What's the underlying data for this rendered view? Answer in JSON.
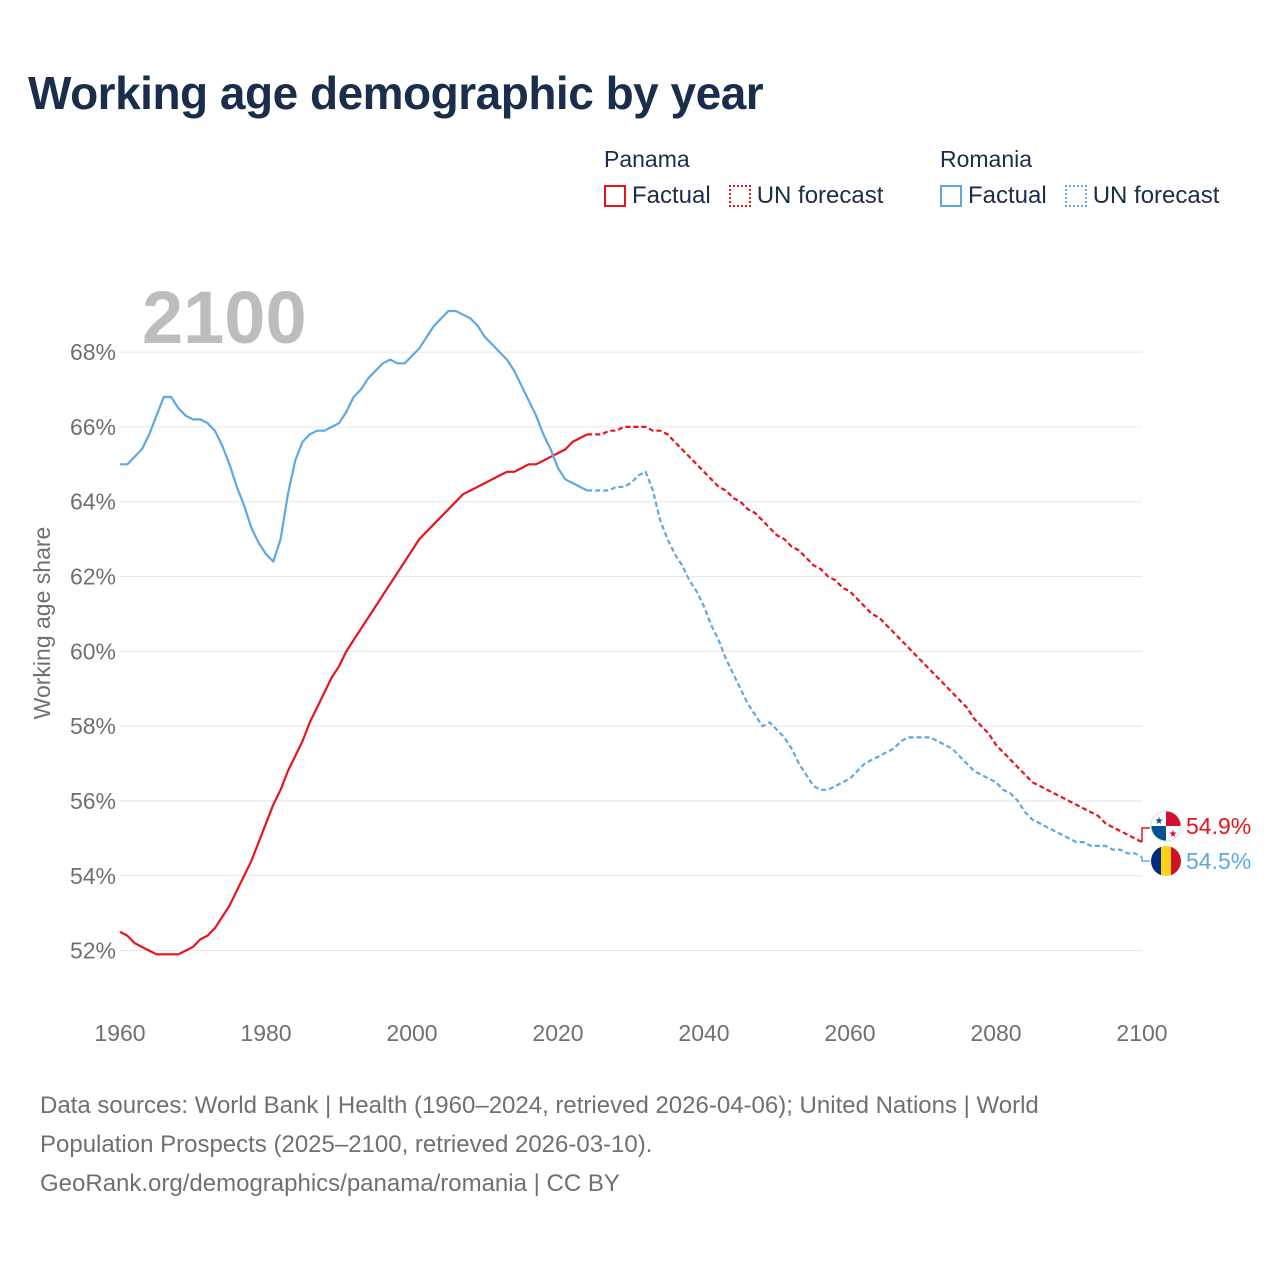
{
  "title": "Working age demographic by year",
  "legend": {
    "groups": [
      {
        "country": "Panama",
        "factual_label": "Factual",
        "forecast_label": "UN forecast",
        "color": "#e8141c"
      },
      {
        "country": "Romania",
        "factual_label": "Factual",
        "forecast_label": "UN forecast",
        "color": "#5fa8e3"
      }
    ]
  },
  "year_watermark": "2100",
  "sources": {
    "line1": "Data sources: World Bank | Health (1960–2024, retrieved 2026-04-06); United Nations | World",
    "line2": "Population Prospects (2025–2100, retrieved 2026-03-10).",
    "line3": "GeoRank.org/demographics/panama/romania | CC BY"
  },
  "colors": {
    "panama": "#e8141c",
    "romania": "#5fa8e3",
    "title": "#1a2e4c",
    "axis_text": "#707070",
    "grid": "#e6e6e6",
    "watermark": "#bdbdbd"
  },
  "chart_data": {
    "type": "line",
    "title": "Working age demographic by year",
    "xlabel": "",
    "ylabel": "Working age share",
    "xlim": [
      1960,
      2100
    ],
    "ylim": [
      51,
      69.5
    ],
    "x_ticks": [
      1960,
      1980,
      2000,
      2020,
      2040,
      2060,
      2080,
      2100
    ],
    "x_tick_labels": [
      "1960",
      "1980",
      "2000",
      "2020",
      "2040",
      "2060",
      "2080",
      "2100"
    ],
    "y_ticks": [
      52,
      54,
      56,
      58,
      60,
      62,
      64,
      66,
      68
    ],
    "y_tick_labels": [
      "52%",
      "54%",
      "56%",
      "58%",
      "60%",
      "62%",
      "64%",
      "66%",
      "68%"
    ],
    "factual_end_year": 2024,
    "series": [
      {
        "name": "Panama",
        "end_label": "54.9%",
        "points": [
          [
            1960,
            52.5
          ],
          [
            1961,
            52.4
          ],
          [
            1962,
            52.2
          ],
          [
            1963,
            52.1
          ],
          [
            1964,
            52.0
          ],
          [
            1965,
            51.9
          ],
          [
            1966,
            51.9
          ],
          [
            1967,
            51.9
          ],
          [
            1968,
            51.9
          ],
          [
            1969,
            52.0
          ],
          [
            1970,
            52.1
          ],
          [
            1971,
            52.3
          ],
          [
            1972,
            52.4
          ],
          [
            1973,
            52.6
          ],
          [
            1974,
            52.9
          ],
          [
            1975,
            53.2
          ],
          [
            1976,
            53.6
          ],
          [
            1977,
            54.0
          ],
          [
            1978,
            54.4
          ],
          [
            1979,
            54.9
          ],
          [
            1980,
            55.4
          ],
          [
            1981,
            55.9
          ],
          [
            1982,
            56.3
          ],
          [
            1983,
            56.8
          ],
          [
            1984,
            57.2
          ],
          [
            1985,
            57.6
          ],
          [
            1986,
            58.1
          ],
          [
            1987,
            58.5
          ],
          [
            1988,
            58.9
          ],
          [
            1989,
            59.3
          ],
          [
            1990,
            59.6
          ],
          [
            1991,
            60.0
          ],
          [
            1992,
            60.3
          ],
          [
            1993,
            60.6
          ],
          [
            1994,
            60.9
          ],
          [
            1995,
            61.2
          ],
          [
            1996,
            61.5
          ],
          [
            1997,
            61.8
          ],
          [
            1998,
            62.1
          ],
          [
            1999,
            62.4
          ],
          [
            2000,
            62.7
          ],
          [
            2001,
            63.0
          ],
          [
            2002,
            63.2
          ],
          [
            2003,
            63.4
          ],
          [
            2004,
            63.6
          ],
          [
            2005,
            63.8
          ],
          [
            2006,
            64.0
          ],
          [
            2007,
            64.2
          ],
          [
            2008,
            64.3
          ],
          [
            2009,
            64.4
          ],
          [
            2010,
            64.5
          ],
          [
            2011,
            64.6
          ],
          [
            2012,
            64.7
          ],
          [
            2013,
            64.8
          ],
          [
            2014,
            64.8
          ],
          [
            2015,
            64.9
          ],
          [
            2016,
            65.0
          ],
          [
            2017,
            65.0
          ],
          [
            2018,
            65.1
          ],
          [
            2019,
            65.2
          ],
          [
            2020,
            65.3
          ],
          [
            2021,
            65.4
          ],
          [
            2022,
            65.6
          ],
          [
            2023,
            65.7
          ],
          [
            2024,
            65.8
          ],
          [
            2025,
            65.8
          ],
          [
            2026,
            65.8
          ],
          [
            2027,
            65.9
          ],
          [
            2028,
            65.9
          ],
          [
            2029,
            66.0
          ],
          [
            2030,
            66.0
          ],
          [
            2031,
            66.0
          ],
          [
            2032,
            66.0
          ],
          [
            2033,
            65.9
          ],
          [
            2034,
            65.9
          ],
          [
            2035,
            65.8
          ],
          [
            2036,
            65.6
          ],
          [
            2037,
            65.4
          ],
          [
            2038,
            65.2
          ],
          [
            2039,
            65.0
          ],
          [
            2040,
            64.8
          ],
          [
            2041,
            64.6
          ],
          [
            2042,
            64.4
          ],
          [
            2043,
            64.3
          ],
          [
            2044,
            64.1
          ],
          [
            2045,
            64.0
          ],
          [
            2046,
            63.8
          ],
          [
            2047,
            63.7
          ],
          [
            2048,
            63.5
          ],
          [
            2049,
            63.3
          ],
          [
            2050,
            63.1
          ],
          [
            2051,
            63.0
          ],
          [
            2052,
            62.8
          ],
          [
            2053,
            62.7
          ],
          [
            2054,
            62.5
          ],
          [
            2055,
            62.3
          ],
          [
            2056,
            62.2
          ],
          [
            2057,
            62.0
          ],
          [
            2058,
            61.9
          ],
          [
            2059,
            61.7
          ],
          [
            2060,
            61.6
          ],
          [
            2061,
            61.4
          ],
          [
            2062,
            61.2
          ],
          [
            2063,
            61.0
          ],
          [
            2064,
            60.9
          ],
          [
            2065,
            60.7
          ],
          [
            2066,
            60.5
          ],
          [
            2067,
            60.3
          ],
          [
            2068,
            60.1
          ],
          [
            2069,
            59.9
          ],
          [
            2070,
            59.7
          ],
          [
            2071,
            59.5
          ],
          [
            2072,
            59.3
          ],
          [
            2073,
            59.1
          ],
          [
            2074,
            58.9
          ],
          [
            2075,
            58.7
          ],
          [
            2076,
            58.5
          ],
          [
            2077,
            58.2
          ],
          [
            2078,
            58.0
          ],
          [
            2079,
            57.8
          ],
          [
            2080,
            57.5
          ],
          [
            2081,
            57.3
          ],
          [
            2082,
            57.1
          ],
          [
            2083,
            56.9
          ],
          [
            2084,
            56.7
          ],
          [
            2085,
            56.5
          ],
          [
            2086,
            56.4
          ],
          [
            2087,
            56.3
          ],
          [
            2088,
            56.2
          ],
          [
            2089,
            56.1
          ],
          [
            2090,
            56.0
          ],
          [
            2091,
            55.9
          ],
          [
            2092,
            55.8
          ],
          [
            2093,
            55.7
          ],
          [
            2094,
            55.6
          ],
          [
            2095,
            55.4
          ],
          [
            2096,
            55.3
          ],
          [
            2097,
            55.2
          ],
          [
            2098,
            55.1
          ],
          [
            2099,
            55.0
          ],
          [
            2100,
            54.9
          ]
        ]
      },
      {
        "name": "Romania",
        "end_label": "54.5%",
        "points": [
          [
            1960,
            65.0
          ],
          [
            1961,
            65.0
          ],
          [
            1962,
            65.2
          ],
          [
            1963,
            65.4
          ],
          [
            1964,
            65.8
          ],
          [
            1965,
            66.3
          ],
          [
            1966,
            66.8
          ],
          [
            1967,
            66.8
          ],
          [
            1968,
            66.5
          ],
          [
            1969,
            66.3
          ],
          [
            1970,
            66.2
          ],
          [
            1971,
            66.2
          ],
          [
            1972,
            66.1
          ],
          [
            1973,
            65.9
          ],
          [
            1974,
            65.5
          ],
          [
            1975,
            65.0
          ],
          [
            1976,
            64.4
          ],
          [
            1977,
            63.9
          ],
          [
            1978,
            63.3
          ],
          [
            1979,
            62.9
          ],
          [
            1980,
            62.6
          ],
          [
            1981,
            62.4
          ],
          [
            1982,
            63.0
          ],
          [
            1983,
            64.2
          ],
          [
            1984,
            65.1
          ],
          [
            1985,
            65.6
          ],
          [
            1986,
            65.8
          ],
          [
            1987,
            65.9
          ],
          [
            1988,
            65.9
          ],
          [
            1989,
            66.0
          ],
          [
            1990,
            66.1
          ],
          [
            1991,
            66.4
          ],
          [
            1992,
            66.8
          ],
          [
            1993,
            67.0
          ],
          [
            1994,
            67.3
          ],
          [
            1995,
            67.5
          ],
          [
            1996,
            67.7
          ],
          [
            1997,
            67.8
          ],
          [
            1998,
            67.7
          ],
          [
            1999,
            67.7
          ],
          [
            2000,
            67.9
          ],
          [
            2001,
            68.1
          ],
          [
            2002,
            68.4
          ],
          [
            2003,
            68.7
          ],
          [
            2004,
            68.9
          ],
          [
            2005,
            69.1
          ],
          [
            2006,
            69.1
          ],
          [
            2007,
            69.0
          ],
          [
            2008,
            68.9
          ],
          [
            2009,
            68.7
          ],
          [
            2010,
            68.4
          ],
          [
            2011,
            68.2
          ],
          [
            2012,
            68.0
          ],
          [
            2013,
            67.8
          ],
          [
            2014,
            67.5
          ],
          [
            2015,
            67.1
          ],
          [
            2016,
            66.7
          ],
          [
            2017,
            66.3
          ],
          [
            2018,
            65.8
          ],
          [
            2019,
            65.4
          ],
          [
            2020,
            64.9
          ],
          [
            2021,
            64.6
          ],
          [
            2022,
            64.5
          ],
          [
            2023,
            64.4
          ],
          [
            2024,
            64.3
          ],
          [
            2025,
            64.3
          ],
          [
            2026,
            64.3
          ],
          [
            2027,
            64.3
          ],
          [
            2028,
            64.4
          ],
          [
            2029,
            64.4
          ],
          [
            2030,
            64.5
          ],
          [
            2031,
            64.7
          ],
          [
            2032,
            64.8
          ],
          [
            2033,
            64.3
          ],
          [
            2034,
            63.5
          ],
          [
            2035,
            63.0
          ],
          [
            2036,
            62.6
          ],
          [
            2037,
            62.3
          ],
          [
            2038,
            61.9
          ],
          [
            2039,
            61.6
          ],
          [
            2040,
            61.2
          ],
          [
            2041,
            60.7
          ],
          [
            2042,
            60.3
          ],
          [
            2043,
            59.8
          ],
          [
            2044,
            59.4
          ],
          [
            2045,
            59.0
          ],
          [
            2046,
            58.6
          ],
          [
            2047,
            58.3
          ],
          [
            2048,
            58.0
          ],
          [
            2049,
            58.1
          ],
          [
            2050,
            57.9
          ],
          [
            2051,
            57.7
          ],
          [
            2052,
            57.4
          ],
          [
            2053,
            57.0
          ],
          [
            2054,
            56.7
          ],
          [
            2055,
            56.4
          ],
          [
            2056,
            56.3
          ],
          [
            2057,
            56.3
          ],
          [
            2058,
            56.4
          ],
          [
            2059,
            56.5
          ],
          [
            2060,
            56.6
          ],
          [
            2061,
            56.8
          ],
          [
            2062,
            57.0
          ],
          [
            2063,
            57.1
          ],
          [
            2064,
            57.2
          ],
          [
            2065,
            57.3
          ],
          [
            2066,
            57.4
          ],
          [
            2067,
            57.6
          ],
          [
            2068,
            57.7
          ],
          [
            2069,
            57.7
          ],
          [
            2070,
            57.7
          ],
          [
            2071,
            57.7
          ],
          [
            2072,
            57.6
          ],
          [
            2073,
            57.5
          ],
          [
            2074,
            57.4
          ],
          [
            2075,
            57.2
          ],
          [
            2076,
            57.0
          ],
          [
            2077,
            56.8
          ],
          [
            2078,
            56.7
          ],
          [
            2079,
            56.6
          ],
          [
            2080,
            56.5
          ],
          [
            2081,
            56.3
          ],
          [
            2082,
            56.2
          ],
          [
            2083,
            56.0
          ],
          [
            2084,
            55.7
          ],
          [
            2085,
            55.5
          ],
          [
            2086,
            55.4
          ],
          [
            2087,
            55.3
          ],
          [
            2088,
            55.2
          ],
          [
            2089,
            55.1
          ],
          [
            2090,
            55.0
          ],
          [
            2091,
            54.9
          ],
          [
            2092,
            54.9
          ],
          [
            2093,
            54.8
          ],
          [
            2094,
            54.8
          ],
          [
            2095,
            54.8
          ],
          [
            2096,
            54.7
          ],
          [
            2097,
            54.7
          ],
          [
            2098,
            54.6
          ],
          [
            2099,
            54.6
          ],
          [
            2100,
            54.5
          ]
        ]
      }
    ]
  }
}
